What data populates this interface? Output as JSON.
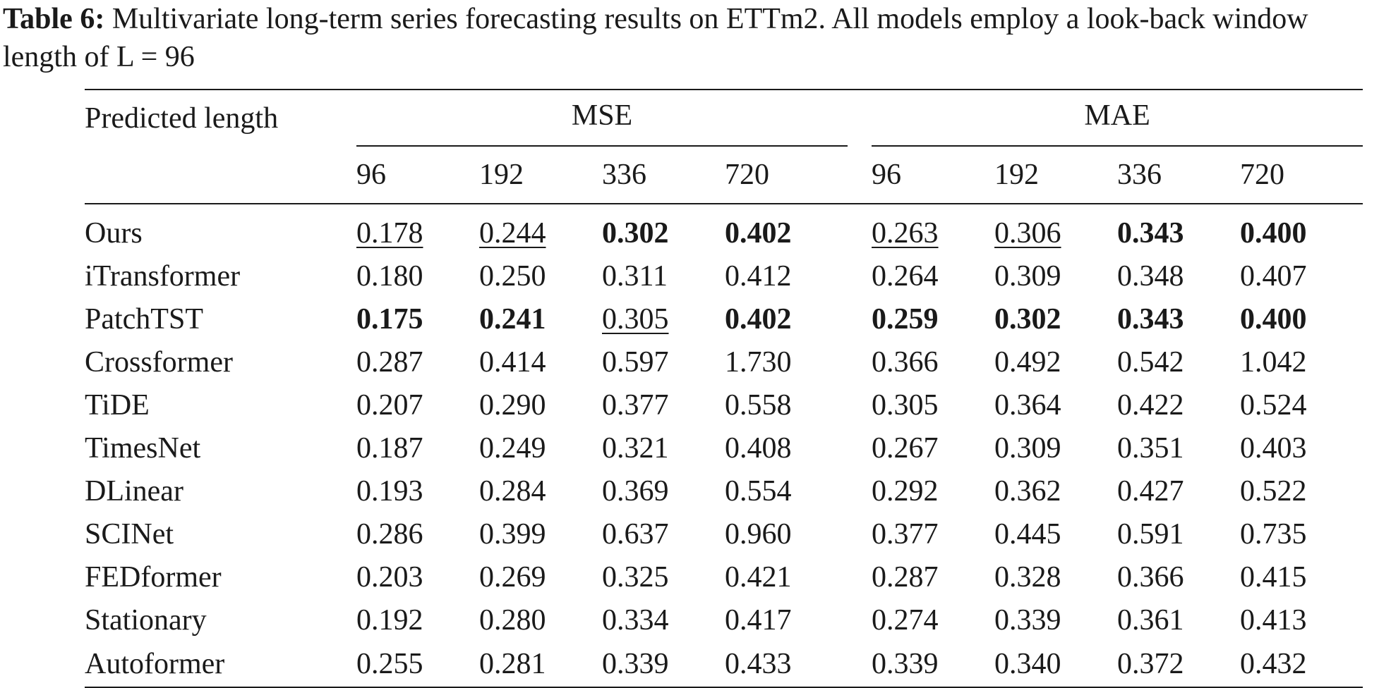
{
  "caption": {
    "label": "Table 6:",
    "text": " Multivariate long-term series forecasting results on ETTm2. All models employ a look-back window length of L = 96"
  },
  "table": {
    "row_header": "Predicted length",
    "groups": [
      "MSE",
      "MAE"
    ],
    "horizons": [
      "96",
      "192",
      "336",
      "720",
      "96",
      "192",
      "336",
      "720"
    ],
    "rows": [
      {
        "model": "Ours",
        "values": [
          "0.178",
          "0.244",
          "0.302",
          "0.402",
          "0.263",
          "0.306",
          "0.343",
          "0.400"
        ],
        "style": [
          "u",
          "u",
          "b",
          "b",
          "u",
          "u",
          "b",
          "b"
        ]
      },
      {
        "model": "iTransformer",
        "values": [
          "0.180",
          "0.250",
          "0.311",
          "0.412",
          "0.264",
          "0.309",
          "0.348",
          "0.407"
        ],
        "style": [
          "",
          "",
          "",
          "",
          "",
          "",
          "",
          ""
        ]
      },
      {
        "model": "PatchTST",
        "values": [
          "0.175",
          "0.241",
          "0.305",
          "0.402",
          "0.259",
          "0.302",
          "0.343",
          "0.400"
        ],
        "style": [
          "b",
          "b",
          "u",
          "b",
          "b",
          "b",
          "b",
          "b"
        ]
      },
      {
        "model": "Crossformer",
        "values": [
          "0.287",
          "0.414",
          "0.597",
          "1.730",
          "0.366",
          "0.492",
          "0.542",
          "1.042"
        ],
        "style": [
          "",
          "",
          "",
          "",
          "",
          "",
          "",
          ""
        ]
      },
      {
        "model": "TiDE",
        "values": [
          "0.207",
          "0.290",
          "0.377",
          "0.558",
          "0.305",
          "0.364",
          "0.422",
          "0.524"
        ],
        "style": [
          "",
          "",
          "",
          "",
          "",
          "",
          "",
          ""
        ]
      },
      {
        "model": "TimesNet",
        "values": [
          "0.187",
          "0.249",
          "0.321",
          "0.408",
          "0.267",
          "0.309",
          "0.351",
          "0.403"
        ],
        "style": [
          "",
          "",
          "",
          "",
          "",
          "",
          "",
          ""
        ]
      },
      {
        "model": "DLinear",
        "values": [
          "0.193",
          "0.284",
          "0.369",
          "0.554",
          "0.292",
          "0.362",
          "0.427",
          "0.522"
        ],
        "style": [
          "",
          "",
          "",
          "",
          "",
          "",
          "",
          ""
        ]
      },
      {
        "model": "SCINet",
        "values": [
          "0.286",
          "0.399",
          "0.637",
          "0.960",
          "0.377",
          "0.445",
          "0.591",
          "0.735"
        ],
        "style": [
          "",
          "",
          "",
          "",
          "",
          "",
          "",
          ""
        ]
      },
      {
        "model": "FEDformer",
        "values": [
          "0.203",
          "0.269",
          "0.325",
          "0.421",
          "0.287",
          "0.328",
          "0.366",
          "0.415"
        ],
        "style": [
          "",
          "",
          "",
          "",
          "",
          "",
          "",
          ""
        ]
      },
      {
        "model": "Stationary",
        "values": [
          "0.192",
          "0.280",
          "0.334",
          "0.417",
          "0.274",
          "0.339",
          "0.361",
          "0.413"
        ],
        "style": [
          "",
          "",
          "",
          "",
          "",
          "",
          "",
          ""
        ]
      },
      {
        "model": "Autoformer",
        "values": [
          "0.255",
          "0.281",
          "0.339",
          "0.433",
          "0.339",
          "0.340",
          "0.372",
          "0.432"
        ],
        "style": [
          "",
          "",
          "",
          "",
          "",
          "",
          "",
          ""
        ]
      }
    ]
  }
}
